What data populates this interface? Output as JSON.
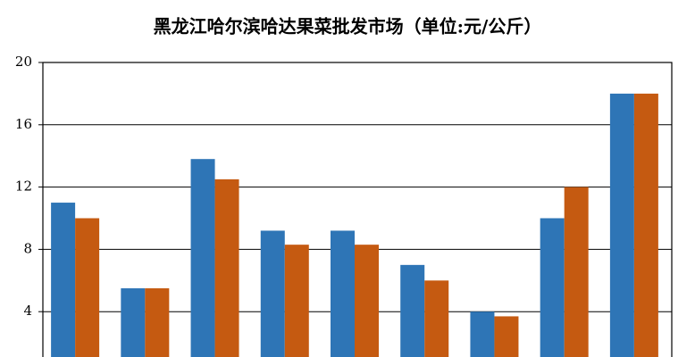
{
  "chart_data": {
    "type": "bar",
    "title": "黑龙江哈尔滨哈达果菜批发市场（单位:元/公斤）",
    "categories": [
      null,
      null,
      null,
      null,
      null,
      null,
      null,
      null,
      null
    ],
    "series": [
      {
        "color": "#2e75b6",
        "values": [
          11,
          5.5,
          13.8,
          9.2,
          9.2,
          7,
          4,
          10,
          18
        ]
      },
      {
        "color": "#c55a11",
        "values": [
          10,
          5.5,
          12.5,
          8.3,
          8.3,
          6,
          3.7,
          12,
          18
        ]
      }
    ],
    "ylim": [
      0,
      20
    ],
    "yticks": [
      4,
      8,
      12,
      16,
      20
    ],
    "grid": true
  }
}
